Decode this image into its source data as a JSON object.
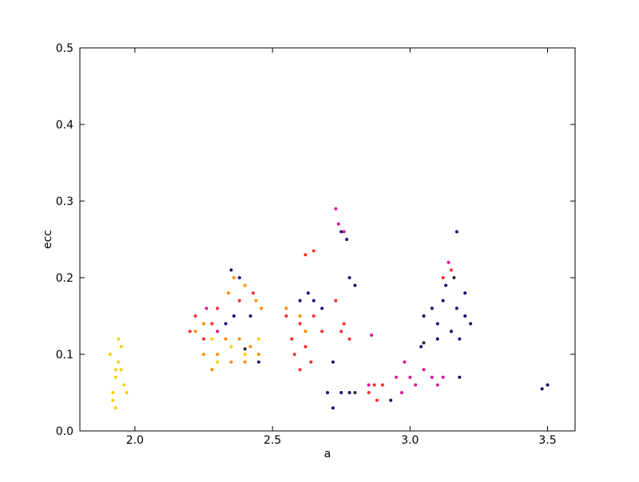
{
  "chart_data": {
    "type": "scatter",
    "xlabel": "a",
    "ylabel": "ecc",
    "xlim": [
      1.8,
      3.6
    ],
    "ylim": [
      0,
      0.5
    ],
    "xticks": [
      {
        "value": 2,
        "label": "2.0"
      },
      2.5,
      {
        "value": 3,
        "label": "3.0"
      },
      3.5
    ],
    "yticks": [
      {
        "value": 0,
        "label": "0.0"
      },
      0.1,
      0.2,
      0.3,
      0.4,
      0.5
    ],
    "series": [
      {
        "color": "#ffcc00",
        "x": [
          1.92,
          1.93,
          1.94,
          1.95,
          1.93,
          1.96,
          1.91,
          1.94,
          1.95,
          1.92,
          1.97,
          1.93,
          2.3,
          2.35,
          2.4,
          2.28,
          2.45
        ],
        "y": [
          0.05,
          0.07,
          0.09,
          0.11,
          0.03,
          0.06,
          0.1,
          0.12,
          0.08,
          0.04,
          0.05,
          0.08,
          0.09,
          0.11,
          0.1,
          0.12,
          0.12
        ]
      },
      {
        "color": "#ff8c00",
        "x": [
          2.25,
          2.3,
          2.35,
          2.4,
          2.45,
          2.28,
          2.33,
          2.38,
          2.42,
          2.25,
          2.22,
          2.36,
          2.4,
          2.44,
          2.46,
          2.34,
          2.6,
          2.62,
          2.55
        ],
        "y": [
          0.1,
          0.1,
          0.09,
          0.09,
          0.1,
          0.08,
          0.12,
          0.12,
          0.11,
          0.14,
          0.13,
          0.2,
          0.19,
          0.17,
          0.16,
          0.18,
          0.15,
          0.13,
          0.16
        ]
      },
      {
        "color": "#ff2a2a",
        "x": [
          2.22,
          2.25,
          2.28,
          2.3,
          2.2,
          2.38,
          2.43,
          2.58,
          2.6,
          2.64,
          2.62,
          2.57,
          2.55,
          2.6,
          2.65,
          2.68,
          2.62,
          2.65,
          2.75,
          2.78,
          2.76,
          2.85,
          2.88,
          2.9,
          2.87,
          3.12,
          3.15,
          2.73
        ],
        "y": [
          0.15,
          0.12,
          0.14,
          0.16,
          0.13,
          0.17,
          0.18,
          0.1,
          0.08,
          0.09,
          0.11,
          0.12,
          0.15,
          0.14,
          0.15,
          0.13,
          0.23,
          0.235,
          0.13,
          0.12,
          0.14,
          0.05,
          0.04,
          0.06,
          0.06,
          0.2,
          0.21,
          0.17
        ]
      },
      {
        "color": "#1a0a6e",
        "x": [
          2.35,
          2.38,
          2.36,
          2.33,
          2.42,
          2.45,
          2.6,
          2.65,
          2.68,
          2.63,
          2.7,
          2.72,
          2.75,
          2.78,
          2.75,
          2.77,
          2.78,
          2.8,
          2.72,
          3.05,
          3.1,
          3.15,
          3.2,
          3.18,
          3.12,
          3.22,
          3.08,
          3.17,
          3.1,
          3.2,
          3.13,
          3.17,
          3.18,
          3.48,
          3.5,
          2.93,
          3.04
        ],
        "y": [
          0.21,
          0.2,
          0.15,
          0.14,
          0.15,
          0.09,
          0.17,
          0.17,
          0.16,
          0.18,
          0.05,
          0.03,
          0.05,
          0.05,
          0.26,
          0.25,
          0.2,
          0.19,
          0.09,
          0.15,
          0.14,
          0.13,
          0.15,
          0.12,
          0.17,
          0.14,
          0.16,
          0.16,
          0.12,
          0.18,
          0.19,
          0.26,
          0.07,
          0.055,
          0.06,
          0.04,
          0.11
        ]
      },
      {
        "color": "#e0109a",
        "x": [
          2.98,
          3.0,
          3.02,
          2.97,
          3.05,
          3.08,
          3.1,
          3.12,
          2.95,
          2.85,
          2.26,
          2.3,
          2.74,
          2.76,
          2.86,
          3.14,
          2.73
        ],
        "y": [
          0.09,
          0.07,
          0.06,
          0.05,
          0.08,
          0.07,
          0.06,
          0.07,
          0.07,
          0.06,
          0.16,
          0.13,
          0.27,
          0.26,
          0.125,
          0.22,
          0.29
        ]
      },
      {
        "color": "#2a2a2a",
        "x": [
          3.16,
          3.05,
          2.4,
          2.8
        ],
        "y": [
          0.2,
          0.115,
          0.107,
          0.05
        ]
      }
    ]
  }
}
